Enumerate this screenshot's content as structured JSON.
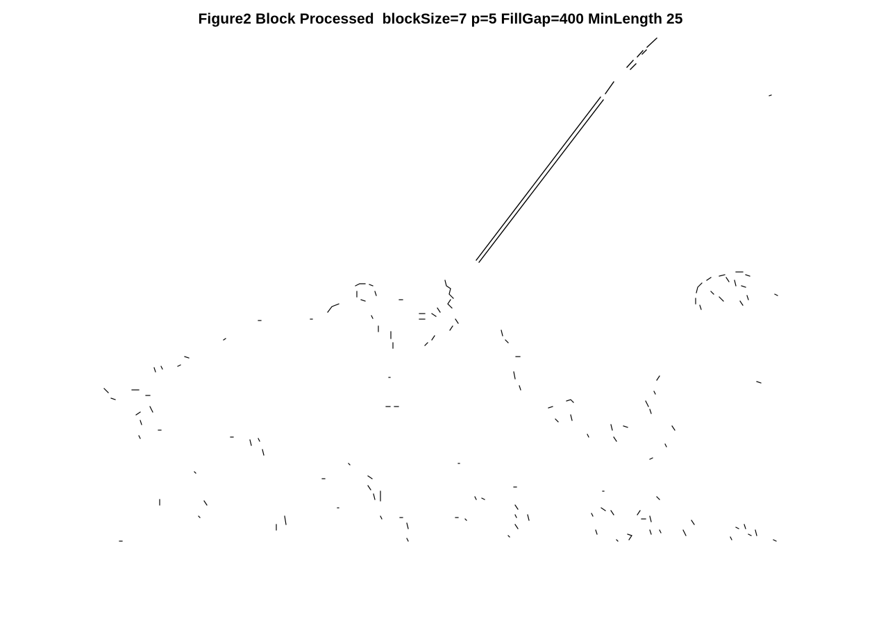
{
  "figure": {
    "title": "Figure2 Block Processed  blockSize=7 p=5 FillGap=400 MinLength 25"
  },
  "colors": {
    "background": "#ffffff",
    "edges": "#000000"
  }
}
